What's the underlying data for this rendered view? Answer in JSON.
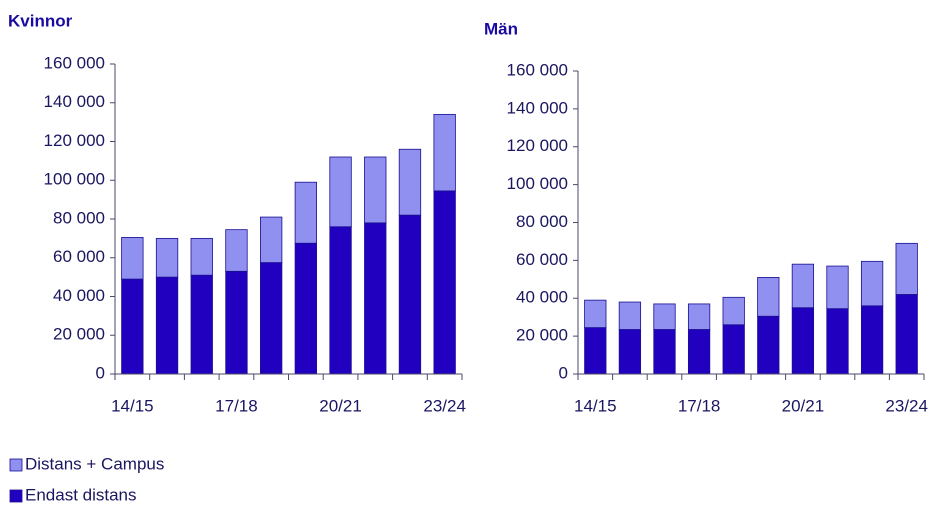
{
  "chart_data": [
    {
      "type": "bar",
      "title": "Kvinnor",
      "categories": [
        "14/15",
        null,
        null,
        "17/18",
        null,
        null,
        "20/21",
        null,
        null,
        "23/24"
      ],
      "series": [
        {
          "name": "Distans + Campus",
          "color": "#9090f0",
          "values": [
            21500,
            20000,
            19000,
            21500,
            23500,
            31500,
            36000,
            34000,
            34000,
            39500
          ]
        },
        {
          "name": "Endast distans",
          "color": "#2200c0",
          "values": [
            49000,
            50000,
            51000,
            53000,
            57500,
            67500,
            76000,
            78000,
            82000,
            94500
          ]
        }
      ],
      "ylim": [
        0,
        160000
      ],
      "yticks": [
        0,
        {
          "value": 20000,
          "label": "20 000"
        },
        {
          "value": 40000,
          "label": "40 000"
        },
        {
          "value": 60000,
          "label": "60 000"
        },
        {
          "value": 80000,
          "label": "80 000"
        },
        {
          "value": 100000,
          "label": "100 000"
        },
        {
          "value": 120000,
          "label": "120 000"
        },
        {
          "value": 140000,
          "label": "140 000"
        },
        {
          "value": 160000,
          "label": "160 000"
        }
      ],
      "stacked": true,
      "grid": false
    },
    {
      "type": "bar",
      "title": "Män",
      "categories": [
        "14/15",
        null,
        null,
        "17/18",
        null,
        null,
        "20/21",
        null,
        null,
        "23/24"
      ],
      "series": [
        {
          "name": "Distans + Campus",
          "color": "#9090f0",
          "values": [
            14500,
            14500,
            13500,
            13500,
            14500,
            20500,
            23000,
            22500,
            23500,
            27000
          ]
        },
        {
          "name": "Endast distans",
          "color": "#2200c0",
          "values": [
            24500,
            23500,
            23500,
            23500,
            26000,
            30500,
            35000,
            34500,
            36000,
            42000
          ]
        }
      ],
      "ylim": [
        0,
        160000
      ],
      "yticks": [
        0,
        {
          "value": 20000,
          "label": "20 000"
        },
        {
          "value": 40000,
          "label": "40 000"
        },
        {
          "value": 60000,
          "label": "60 000"
        },
        {
          "value": 80000,
          "label": "80 000"
        },
        {
          "value": 100000,
          "label": "100 000"
        },
        {
          "value": 120000,
          "label": "120 000"
        },
        {
          "value": 140000,
          "label": "140 000"
        },
        {
          "value": 160000,
          "label": "160 000"
        }
      ],
      "stacked": true,
      "grid": false
    }
  ]
}
